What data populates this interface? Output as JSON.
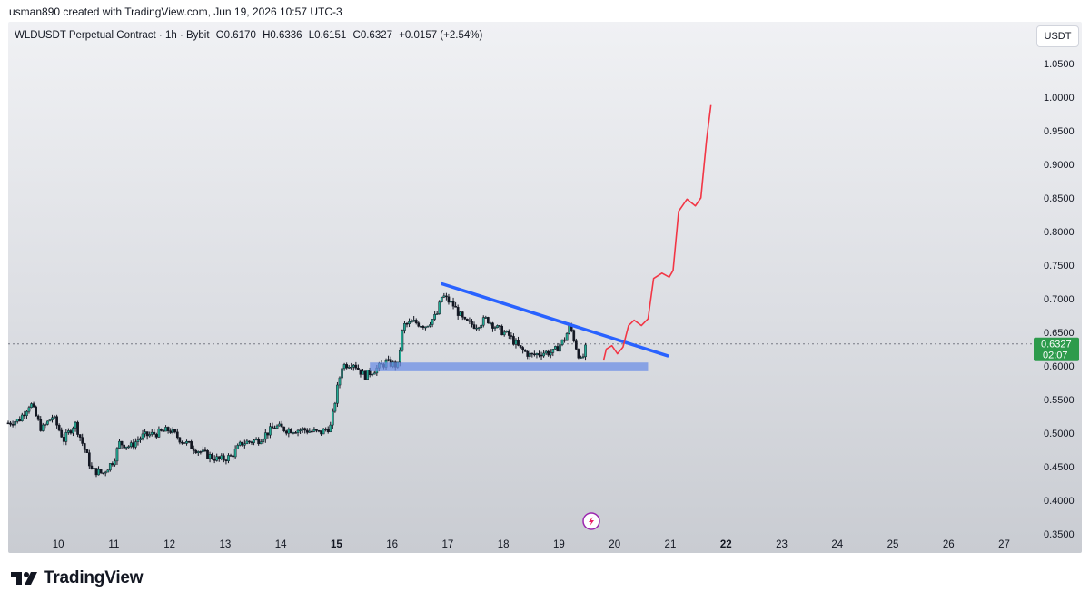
{
  "header": {
    "attribution": "usman890 created with TradingView.com, Jun 19, 2026 10:57 UTC-3"
  },
  "legend": {
    "symbol": "WLDUSDT Perpetual Contract · 1h · Bybit",
    "open": "O0.6170",
    "high": "H0.6336",
    "low": "L0.6151",
    "close": "C0.6327",
    "change": "+0.0157 (+2.54%)"
  },
  "currency_button": "USDT",
  "price_label": {
    "price": "0.6327",
    "countdown": "02:07"
  },
  "footer": {
    "brand": "TradingView"
  },
  "colors": {
    "up": "#22ab94",
    "down": "#131722",
    "trendline": "#2962ff",
    "projection": "#f23645",
    "support": "#6d8fe6",
    "price_tag": "#2d9b4c"
  },
  "chart_data": {
    "type": "candlestick",
    "y_ticks": [
      "1.0500",
      "1.0000",
      "0.9500",
      "0.9000",
      "0.8500",
      "0.8000",
      "0.7500",
      "0.7000",
      "0.6500",
      "0.6000",
      "0.5500",
      "0.5000",
      "0.4500",
      "0.4000",
      "0.3500"
    ],
    "x_ticks": [
      "10",
      "11",
      "12",
      "13",
      "14",
      "15",
      "16",
      "17",
      "18",
      "19",
      "20",
      "21",
      "22",
      "23",
      "24",
      "25",
      "26",
      "27"
    ],
    "bold_x_ticks": [
      "15",
      "22"
    ],
    "ylim": [
      0.35,
      1.07
    ],
    "xlim": [
      9.1,
      27.4
    ],
    "last_price": 0.6327,
    "price_path": [
      [
        9.1,
        0.515
      ],
      [
        9.3,
        0.52
      ],
      [
        9.5,
        0.545
      ],
      [
        9.7,
        0.505
      ],
      [
        9.9,
        0.525
      ],
      [
        10.1,
        0.49
      ],
      [
        10.3,
        0.515
      ],
      [
        10.5,
        0.47
      ],
      [
        10.6,
        0.445
      ],
      [
        10.8,
        0.44
      ],
      [
        11.0,
        0.46
      ],
      [
        11.1,
        0.485
      ],
      [
        11.3,
        0.48
      ],
      [
        11.5,
        0.495
      ],
      [
        11.8,
        0.5
      ],
      [
        12.0,
        0.505
      ],
      [
        12.2,
        0.49
      ],
      [
        12.4,
        0.48
      ],
      [
        12.6,
        0.47
      ],
      [
        12.9,
        0.46
      ],
      [
        13.1,
        0.465
      ],
      [
        13.3,
        0.485
      ],
      [
        13.6,
        0.49
      ],
      [
        13.9,
        0.51
      ],
      [
        14.1,
        0.505
      ],
      [
        14.4,
        0.505
      ],
      [
        14.7,
        0.5
      ],
      [
        14.9,
        0.51
      ],
      [
        15.0,
        0.56
      ],
      [
        15.1,
        0.6
      ],
      [
        15.3,
        0.605
      ],
      [
        15.5,
        0.585
      ],
      [
        15.7,
        0.595
      ],
      [
        15.9,
        0.605
      ],
      [
        16.1,
        0.6
      ],
      [
        16.2,
        0.66
      ],
      [
        16.4,
        0.665
      ],
      [
        16.6,
        0.66
      ],
      [
        16.8,
        0.675
      ],
      [
        16.9,
        0.705
      ],
      [
        17.1,
        0.69
      ],
      [
        17.3,
        0.665
      ],
      [
        17.5,
        0.66
      ],
      [
        17.7,
        0.67
      ],
      [
        17.9,
        0.655
      ],
      [
        18.1,
        0.645
      ],
      [
        18.3,
        0.625
      ],
      [
        18.5,
        0.615
      ],
      [
        18.7,
        0.62
      ],
      [
        18.9,
        0.62
      ],
      [
        19.1,
        0.64
      ],
      [
        19.2,
        0.66
      ],
      [
        19.3,
        0.63
      ],
      [
        19.4,
        0.605
      ],
      [
        19.5,
        0.632
      ]
    ],
    "trendline": {
      "from": [
        16.9,
        0.722
      ],
      "to": [
        20.95,
        0.615
      ]
    },
    "support_zone": {
      "x": [
        15.6,
        20.6
      ],
      "y": [
        0.592,
        0.605
      ]
    },
    "projection_path": [
      [
        19.8,
        0.608
      ],
      [
        19.85,
        0.625
      ],
      [
        19.95,
        0.63
      ],
      [
        20.05,
        0.618
      ],
      [
        20.15,
        0.628
      ],
      [
        20.25,
        0.66
      ],
      [
        20.35,
        0.668
      ],
      [
        20.48,
        0.66
      ],
      [
        20.6,
        0.67
      ],
      [
        20.7,
        0.73
      ],
      [
        20.85,
        0.738
      ],
      [
        20.98,
        0.732
      ],
      [
        21.05,
        0.742
      ],
      [
        21.15,
        0.83
      ],
      [
        21.3,
        0.848
      ],
      [
        21.45,
        0.838
      ],
      [
        21.55,
        0.85
      ],
      [
        21.65,
        0.935
      ],
      [
        21.73,
        0.988
      ]
    ]
  }
}
